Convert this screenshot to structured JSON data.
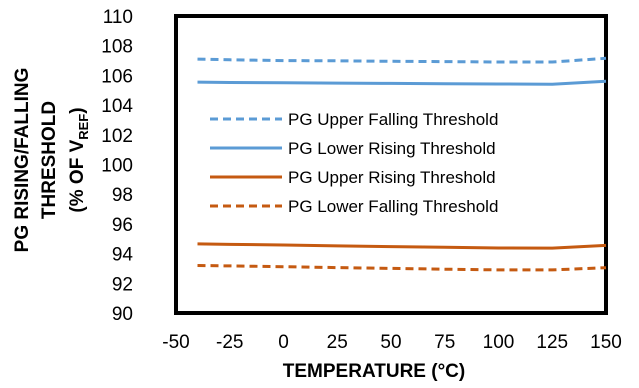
{
  "chart_data": {
    "type": "line",
    "xlabel": "TEMPERATURE (°C)",
    "ylabel_lines": [
      "PG RISING/FALLING",
      "THRESHOLD"
    ],
    "ylabel_unit_prefix": "(% OF V",
    "ylabel_unit_sub": "REF",
    "ylabel_unit_suffix": ")",
    "xlim": [
      -50,
      150
    ],
    "ylim": [
      90,
      110
    ],
    "xticks": [
      "-50",
      "-25",
      "0",
      "25",
      "50",
      "75",
      "100",
      "125",
      "150"
    ],
    "yticks": [
      "90",
      "92",
      "94",
      "96",
      "98",
      "100",
      "102",
      "104",
      "106",
      "108",
      "110"
    ],
    "grid": false,
    "legend_position": "inside-center",
    "series": [
      {
        "name": "PG Upper Falling Threshold",
        "color": "#5b9bd5",
        "dashed": true,
        "x": [
          -40,
          -25,
          0,
          25,
          50,
          75,
          100,
          125,
          150
        ],
        "y": [
          107.1,
          107.05,
          107.0,
          106.98,
          106.95,
          106.93,
          106.9,
          106.9,
          107.15
        ]
      },
      {
        "name": "PG Lower Rising Threshold",
        "color": "#5b9bd5",
        "dashed": false,
        "x": [
          -40,
          -25,
          0,
          25,
          50,
          75,
          100,
          125,
          150
        ],
        "y": [
          105.55,
          105.52,
          105.5,
          105.48,
          105.46,
          105.44,
          105.42,
          105.4,
          105.6
        ]
      },
      {
        "name": "PG Upper Rising Threshold",
        "color": "#c55a11",
        "dashed": false,
        "x": [
          -40,
          -25,
          0,
          25,
          50,
          75,
          100,
          125,
          150
        ],
        "y": [
          94.65,
          94.62,
          94.58,
          94.52,
          94.47,
          94.43,
          94.38,
          94.37,
          94.55
        ]
      },
      {
        "name": "PG Lower Falling Threshold",
        "color": "#c55a11",
        "dashed": true,
        "x": [
          -40,
          -25,
          0,
          25,
          50,
          75,
          100,
          125,
          150
        ],
        "y": [
          93.2,
          93.17,
          93.12,
          93.06,
          93.0,
          92.95,
          92.9,
          92.9,
          93.05
        ]
      }
    ]
  }
}
